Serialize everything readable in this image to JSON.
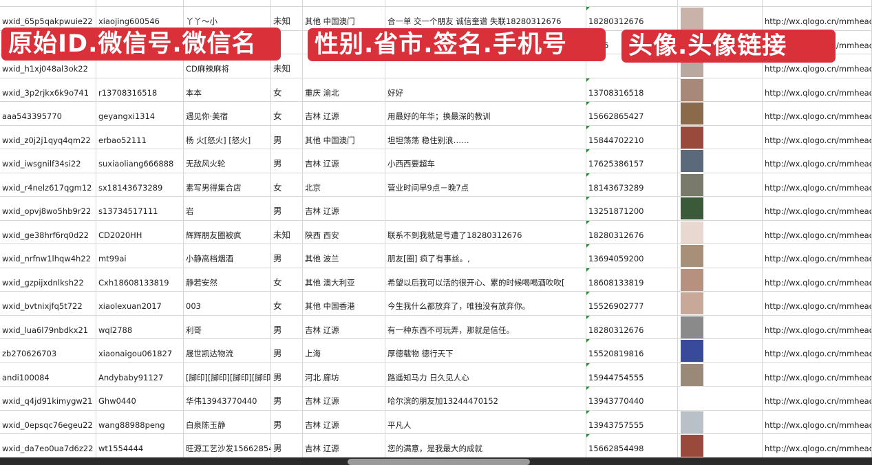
{
  "overlay_labels": [
    "原始ID.微信号.微信名",
    "性别.省市.签名.手机号",
    "头像.头像链接"
  ],
  "rows": [
    {
      "id": "wxid_65p5qakpwuie22",
      "wechat": "xiaojing600546",
      "name": "丫丫～小",
      "gender": "未知",
      "region": "其他 中国澳门",
      "signature": "合一单 交一个朋友 诚信奎谱 失联18280312676",
      "phone": "18280312676",
      "avatar_color": "#c9b2a8",
      "link": "http://wx.qlogo.cn/mmhead"
    },
    {
      "id": "",
      "wechat": "",
      "name": "",
      "gender": "",
      "region": "",
      "signature": "",
      "phone": "5386",
      "avatar_color": "#4a5a8a",
      "link": "http://wx.qlogo.cn/mmhead"
    },
    {
      "id": "wxid_h1xj048al3ok22",
      "wechat": "",
      "name": "CD麻辣麻将",
      "gender": "未知",
      "region": "",
      "signature": "",
      "phone": "",
      "avatar_color": "#b8a8a0",
      "link": "http://wx.qlogo.cn/mmhead"
    },
    {
      "id": "wxid_3p2rjkx6k9o741",
      "wechat": "r13708316518",
      "name": "本本",
      "gender": "女",
      "region": "重庆 渝北",
      "signature": "好好",
      "phone": "13708316518",
      "avatar_color": "#a88878",
      "link": "http://wx.qlogo.cn/mmhead"
    },
    {
      "id": "aaa543395770",
      "wechat": "geyangxi1314",
      "name": "遇见你·美宿",
      "gender": "女",
      "region": "吉林 辽源",
      "signature": "用最好的年华；换最深的教训",
      "phone": "15662865427",
      "avatar_color": "#8a6a48",
      "link": "http://wx.qlogo.cn/mmhead"
    },
    {
      "id": "wxid_z0j2j1qyq4qm22",
      "wechat": "erbao52111",
      "name": "杨 火[怒火] [怒火]",
      "gender": "男",
      "region": "其他 中国澳门",
      "signature": "坦坦荡荡 稳住别浪……",
      "phone": "15844702210",
      "avatar_color": "#9a4a3a",
      "link": "http://wx.qlogo.cn/mmhead"
    },
    {
      "id": "wxid_iwsgnilf34si22",
      "wechat": "suxiaoliang666888",
      "name": "无敌风火轮",
      "gender": "男",
      "region": "吉林 辽源",
      "signature": "小西西要超车",
      "phone": "17625386157",
      "avatar_color": "#5a6a7a",
      "link": "http://wx.qlogo.cn/mmhead"
    },
    {
      "id": "wxid_r4nelz617qgm12",
      "wechat": "sx18143673289",
      "name": "素写男得集合店",
      "gender": "女",
      "region": "北京",
      "signature": "营业时间早9点－晚7点",
      "phone": "18143673289",
      "avatar_color": "#7a7a6a",
      "link": "http://wx.qlogo.cn/mmhead"
    },
    {
      "id": "wxid_opvj8wo5hb9r22",
      "wechat": "s13734517111",
      "name": "岩",
      "gender": "男",
      "region": "吉林 辽源",
      "signature": "",
      "phone": "13251871200",
      "avatar_color": "#3a5a3a",
      "link": "http://wx.qlogo.cn/mmhead"
    },
    {
      "id": "wxid_ge38hrf6rq0d22",
      "wechat": "CD2020HH",
      "name": "辉辉朋友圈被疯",
      "gender": "未知",
      "region": "陕西 西安",
      "signature": "联系不到我就是号遭了18280312676",
      "phone": "18280312676",
      "avatar_color": "#e8d8d0",
      "link": "http://wx.qlogo.cn/mmhead"
    },
    {
      "id": "wxid_nrfnw1lhqw4h22",
      "wechat": "mt99ai",
      "name": "小静高档烟酒",
      "gender": "男",
      "region": "其他 波兰",
      "signature": "朋友[圈] 疯了有事丝。,",
      "phone": "13694059200",
      "avatar_color": "#a89078",
      "link": "http://wx.qlogo.cn/mmhead"
    },
    {
      "id": "wxid_gzpijxdnlksh22",
      "wechat": "Cxh18608133819",
      "name": "静若安然",
      "gender": "女",
      "region": "其他 澳大利亚",
      "signature": "希望以后我可以活的很开心、累的时候喝喝酒吹吹[",
      "phone": "18608133819",
      "avatar_color": "#b89080",
      "link": "http://wx.qlogo.cn/mmhead"
    },
    {
      "id": "wxid_bvtnixjfq5t722",
      "wechat": "xiaolexuan2017",
      "name": "003",
      "gender": "女",
      "region": "其他 中国香港",
      "signature": "今生我什么都放弃了，唯独没有放弃你。",
      "phone": "15526902777",
      "avatar_color": "#c8a898",
      "link": "http://wx.qlogo.cn/mmhead"
    },
    {
      "id": "wxid_lua6l79nbdkx21",
      "wechat": "wql2788",
      "name": "利哥",
      "gender": "男",
      "region": "吉林 辽源",
      "signature": "有一种东西不可玩弄，那就是信任。",
      "phone": "18280312676",
      "avatar_color": "#8a8a8a",
      "link": "http://wx.qlogo.cn/mmhead"
    },
    {
      "id": "zb270626703",
      "wechat": "xiaonaigou061827",
      "name": "晟世凯达物流",
      "gender": "男",
      "region": "上海",
      "signature": "厚德载物 德行天下",
      "phone": "15520819816",
      "avatar_color": "#3a4a9a",
      "link": "http://wx.qlogo.cn/mmhead"
    },
    {
      "id": "andi100084",
      "wechat": "Andybaby91127",
      "name": "[脚印][脚印][脚印][脚印]",
      "gender": "男",
      "region": "河北 廊坊",
      "signature": "路遥知马力 日久见人心",
      "phone": "15944754555",
      "avatar_color": "#9a8878",
      "link": "http://wx.qlogo.cn/mmhead"
    },
    {
      "id": "wxid_q4jd91kimygw21",
      "wechat": "Ghw0440",
      "name": "华伟13943770440",
      "gender": "男",
      "region": "吉林 辽源",
      "signature": "哈尔滨的朋友加13244470152",
      "phone": "13943770440",
      "avatar_color": "#ffffff",
      "link": "http://wx.qlogo.cn/mmhead"
    },
    {
      "id": "wxid_0epsqc76egeu22",
      "wechat": "wang88988peng",
      "name": "白泉陈玉静",
      "gender": "男",
      "region": "吉林 辽源",
      "signature": "平凡人",
      "phone": "13943757555",
      "avatar_color": "#b8c0c8",
      "link": "http://wx.qlogo.cn/mmhead"
    },
    {
      "id": "wxid_da7eo0ua7d6z22",
      "wechat": "wt1554444",
      "name": "旺源工艺沙发15662854",
      "gender": "男",
      "region": "吉林 辽源",
      "signature": "您的满意，是我最大的成就",
      "phone": "15662854498",
      "avatar_color": "#9a4a3a",
      "link": "http://wx.qlogo.cn/mmhead"
    }
  ]
}
